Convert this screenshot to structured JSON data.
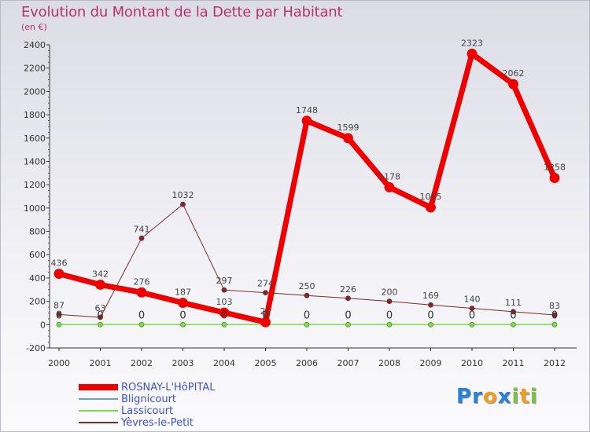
{
  "title": "Evolution du Montant de la Dette par Habitant",
  "subtitle": "(en €)",
  "logo": {
    "text": "Proxiti",
    "letters": [
      {
        "ch": "P",
        "color": "#2a7fd6"
      },
      {
        "ch": "r",
        "color": "#2a7fd6"
      },
      {
        "ch": "o",
        "color": "#f0a020"
      },
      {
        "ch": "x",
        "color": "#2a7fd6"
      },
      {
        "ch": "i",
        "color": "#79c043"
      },
      {
        "ch": "t",
        "color": "#f0a020"
      },
      {
        "ch": "i",
        "color": "#79c043"
      }
    ]
  },
  "chart_data": {
    "type": "line",
    "title": "Evolution du Montant de la Dette par Habitant",
    "subtitle": "(en €)",
    "xlabel": "",
    "ylabel": "",
    "x": [
      "2000",
      "2001",
      "2002",
      "2003",
      "2004",
      "2005",
      "2006",
      "2007",
      "2008",
      "2009",
      "2010",
      "2011",
      "2012"
    ],
    "yticks": [
      "2400",
      "2200",
      "2000",
      "1800",
      "1600",
      "1400",
      "1200",
      "1000",
      "800",
      "600",
      "400",
      "200",
      "0",
      "-200"
    ],
    "ylim": [
      -200,
      2400
    ],
    "grid": false,
    "legend_position": "bottom-left",
    "series": [
      {
        "name": "ROSNAY-L'HôPITAL",
        "color": "#ee0000",
        "values": [
          436,
          342,
          276,
          187,
          103,
          21,
          1748,
          1599,
          1178,
          1005,
          2323,
          2062,
          1258
        ],
        "labels": [
          "436",
          "342",
          "276",
          "187",
          "103",
          "21",
          "1748",
          "1599",
          "1178",
          "1005",
          "2323",
          "2062",
          "1258"
        ]
      },
      {
        "name": "Blignicourt",
        "color": "#6f9ccf",
        "values": [
          0,
          0,
          0,
          0,
          0,
          0,
          0,
          0,
          0,
          0,
          0,
          0,
          0
        ],
        "labels": [
          "0",
          "0",
          "0",
          "0",
          "0",
          "0",
          "0",
          "0",
          "0",
          "0",
          "0",
          "0",
          "0"
        ]
      },
      {
        "name": "Lassicourt",
        "color": "#7ed957",
        "values": [
          0,
          0,
          0,
          0,
          0,
          0,
          0,
          0,
          0,
          0,
          0,
          0,
          0
        ],
        "labels": []
      },
      {
        "name": "Yèvres-le-Petit",
        "color": "#7a2a2a",
        "values": [
          87,
          63,
          741,
          1032,
          297,
          274,
          250,
          226,
          200,
          169,
          140,
          111,
          83
        ],
        "labels": [
          "87",
          "63",
          "741",
          "1032",
          "297",
          "274",
          "250",
          "226",
          "200",
          "169",
          "140",
          "111",
          "83"
        ]
      }
    ]
  }
}
